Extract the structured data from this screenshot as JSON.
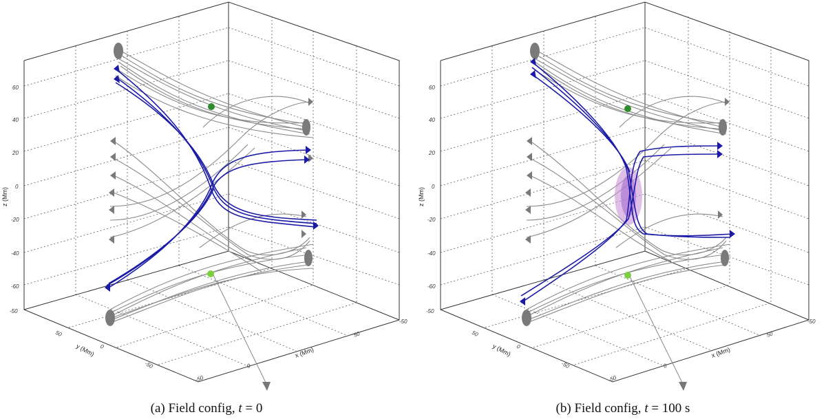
{
  "figure": {
    "panels": [
      {
        "id": "a",
        "caption_prefix": "(a)",
        "caption_text": "Field config,",
        "time_var": "t",
        "time_value": "= 0",
        "show_current_sheet": false,
        "highlight_color": "#1a1aa6",
        "field_color": "#8a8a8a"
      },
      {
        "id": "b",
        "caption_prefix": "(b)",
        "caption_text": "Field config,",
        "time_var": "t",
        "time_value": "= 100 s",
        "show_current_sheet": true,
        "highlight_color": "#1a1aa6",
        "field_color": "#8a8a8a",
        "sheet_color": "#c48ad6"
      }
    ],
    "axes": {
      "z_label": "z (Mm)",
      "z_ticks": [
        "60",
        "40",
        "20",
        "0",
        "-20",
        "-40",
        "-60"
      ],
      "z_ticks_b": [
        "60",
        "40",
        "20",
        "0",
        "-20",
        "-40",
        "-60"
      ],
      "y_label": "y (Mm)",
      "x_label": "x (Mm)",
      "y_ticks": [
        "-50",
        "0",
        "50"
      ],
      "x_ticks": [
        "-50",
        "0",
        "50"
      ],
      "corner_tick_left": "-50",
      "corner_tick_right": "-50"
    },
    "null_points": {
      "upper_color": "#2e8b2e",
      "lower_color": "#7ad13a"
    }
  }
}
